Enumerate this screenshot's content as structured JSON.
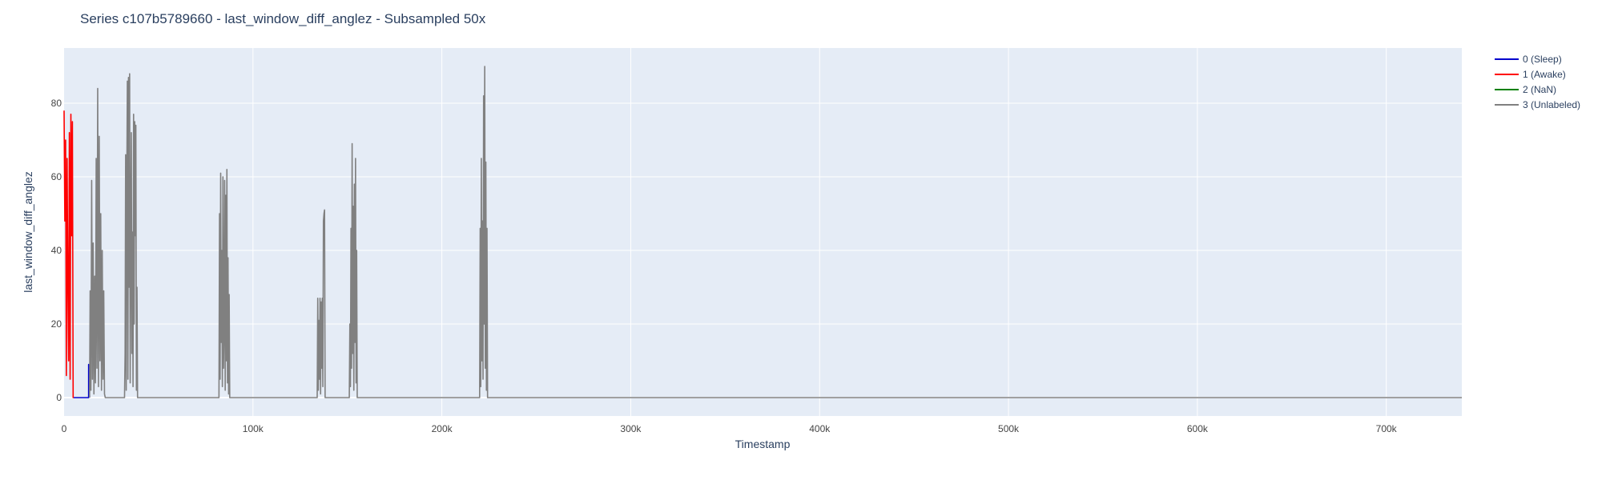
{
  "chart_data": {
    "type": "line",
    "title": "Series c107b5789660 - last_window_diff_anglez - Subsampled 50x",
    "xlabel": "Timestamp",
    "ylabel": "last_window_diff_anglez",
    "xlim": [
      0,
      740000
    ],
    "ylim": [
      -5,
      95
    ],
    "x_ticks": [
      0,
      100000,
      200000,
      300000,
      400000,
      500000,
      600000,
      700000
    ],
    "x_tick_labels": [
      "0",
      "100k",
      "200k",
      "300k",
      "400k",
      "500k",
      "600k",
      "700k"
    ],
    "y_ticks": [
      0,
      20,
      40,
      60,
      80
    ],
    "y_tick_labels": [
      "0",
      "20",
      "40",
      "60",
      "80"
    ],
    "grid": true,
    "legend_position": "right",
    "series": [
      {
        "name": "0 (Sleep)",
        "color": "#0000cc",
        "points": [
          [
            5000,
            0
          ],
          [
            13000,
            0
          ],
          [
            13000,
            9
          ],
          [
            13500,
            0
          ]
        ]
      },
      {
        "name": "1 (Awake)",
        "color": "#ff0000",
        "points": [
          [
            0,
            78
          ],
          [
            400,
            48
          ],
          [
            800,
            70
          ],
          [
            1200,
            6
          ],
          [
            1600,
            65
          ],
          [
            2000,
            30
          ],
          [
            2400,
            10
          ],
          [
            2800,
            72
          ],
          [
            3200,
            5
          ],
          [
            3600,
            77
          ],
          [
            4000,
            44
          ],
          [
            4400,
            75
          ],
          [
            4800,
            0
          ],
          [
            5000,
            0
          ]
        ]
      },
      {
        "name": "2 (NaN)",
        "color": "#008000",
        "points": []
      },
      {
        "name": "3 (Unlabeled)",
        "color": "#808080",
        "points": [
          [
            13500,
            0
          ],
          [
            13800,
            29
          ],
          [
            14200,
            2
          ],
          [
            14600,
            59
          ],
          [
            15000,
            5
          ],
          [
            15400,
            42
          ],
          [
            15800,
            1
          ],
          [
            16200,
            33
          ],
          [
            16600,
            4
          ],
          [
            17000,
            65
          ],
          [
            17400,
            8
          ],
          [
            17800,
            84
          ],
          [
            18200,
            3
          ],
          [
            18600,
            71
          ],
          [
            19000,
            10
          ],
          [
            19400,
            50
          ],
          [
            19800,
            2
          ],
          [
            20200,
            40
          ],
          [
            20600,
            5
          ],
          [
            21000,
            29
          ],
          [
            21400,
            1
          ],
          [
            21800,
            0
          ],
          [
            32000,
            0
          ],
          [
            32300,
            12
          ],
          [
            32600,
            66
          ],
          [
            32900,
            2
          ],
          [
            33200,
            58
          ],
          [
            33500,
            86
          ],
          [
            33800,
            5
          ],
          [
            34100,
            87
          ],
          [
            34400,
            30
          ],
          [
            34700,
            88
          ],
          [
            35000,
            4
          ],
          [
            35300,
            44
          ],
          [
            35600,
            72
          ],
          [
            35900,
            12
          ],
          [
            36200,
            45
          ],
          [
            36500,
            3
          ],
          [
            36800,
            77
          ],
          [
            37100,
            20
          ],
          [
            37400,
            75
          ],
          [
            37700,
            44
          ],
          [
            38000,
            74
          ],
          [
            38300,
            2
          ],
          [
            38600,
            30
          ],
          [
            38900,
            0
          ],
          [
            82000,
            0
          ],
          [
            82300,
            50
          ],
          [
            82600,
            5
          ],
          [
            82900,
            61
          ],
          [
            83200,
            15
          ],
          [
            83500,
            40
          ],
          [
            83800,
            3
          ],
          [
            84100,
            60
          ],
          [
            84400,
            8
          ],
          [
            84700,
            20
          ],
          [
            85000,
            59
          ],
          [
            85300,
            2
          ],
          [
            85600,
            55
          ],
          [
            85900,
            10
          ],
          [
            86200,
            62
          ],
          [
            86500,
            4
          ],
          [
            86800,
            38
          ],
          [
            87100,
            1
          ],
          [
            87400,
            28
          ],
          [
            87700,
            0
          ],
          [
            134000,
            0
          ],
          [
            134300,
            27
          ],
          [
            134600,
            2
          ],
          [
            134900,
            21
          ],
          [
            135200,
            5
          ],
          [
            135500,
            27
          ],
          [
            135800,
            1
          ],
          [
            136100,
            26
          ],
          [
            136400,
            8
          ],
          [
            136700,
            27
          ],
          [
            137000,
            3
          ],
          [
            137300,
            48
          ],
          [
            137600,
            50
          ],
          [
            137900,
            51
          ],
          [
            138200,
            0
          ],
          [
            151000,
            0
          ],
          [
            151300,
            20
          ],
          [
            151600,
            3
          ],
          [
            151900,
            46
          ],
          [
            152200,
            8
          ],
          [
            152500,
            69
          ],
          [
            152800,
            12
          ],
          [
            153100,
            52
          ],
          [
            153400,
            2
          ],
          [
            153700,
            58
          ],
          [
            154000,
            15
          ],
          [
            154300,
            65
          ],
          [
            154600,
            4
          ],
          [
            154900,
            40
          ],
          [
            155200,
            0
          ],
          [
            220000,
            0
          ],
          [
            220300,
            46
          ],
          [
            220600,
            3
          ],
          [
            220900,
            65
          ],
          [
            221200,
            10
          ],
          [
            221500,
            48
          ],
          [
            221800,
            5
          ],
          [
            222100,
            82
          ],
          [
            222400,
            20
          ],
          [
            222700,
            90
          ],
          [
            223000,
            8
          ],
          [
            223300,
            64
          ],
          [
            223600,
            2
          ],
          [
            223900,
            46
          ],
          [
            224200,
            0
          ],
          [
            740000,
            0
          ]
        ]
      }
    ]
  }
}
